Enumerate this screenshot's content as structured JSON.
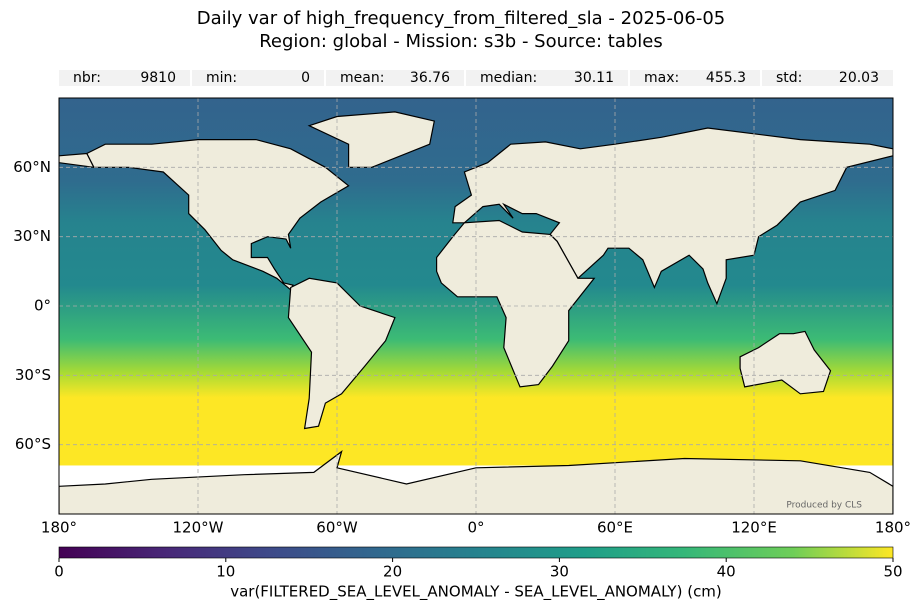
{
  "title": "Daily var of high_frequency_from_filtered_sla - 2025-06-05",
  "subtitle": "Region: global - Mission: s3b - Source: tables",
  "stats": [
    {
      "label": "nbr:",
      "value": 9810
    },
    {
      "label": "min:",
      "value": 0
    },
    {
      "label": "mean:",
      "value": 36.76
    },
    {
      "label": "median:",
      "value": 30.11
    },
    {
      "label": "max:",
      "value": 455.3
    },
    {
      "label": "std:",
      "value": 20.03
    }
  ],
  "map": {
    "xlim": [
      -180,
      180
    ],
    "ylim": [
      -90,
      90
    ],
    "xticks": [
      {
        "value": -180,
        "label": "180°"
      },
      {
        "value": -120,
        "label": "120°W"
      },
      {
        "value": -60,
        "label": "60°W"
      },
      {
        "value": 0,
        "label": "0°"
      },
      {
        "value": 60,
        "label": "60°E"
      },
      {
        "value": 120,
        "label": "120°E"
      },
      {
        "value": 180,
        "label": "180°"
      }
    ],
    "yticks": [
      {
        "value": 60,
        "label": "60°N"
      },
      {
        "value": 30,
        "label": "30°N"
      },
      {
        "value": 0,
        "label": "0°"
      },
      {
        "value": -30,
        "label": "30°S"
      },
      {
        "value": -60,
        "label": "60°S"
      }
    ],
    "credit": "Produced by CLS"
  },
  "colorbar": {
    "label": "var(FILTERED_SEA_LEVEL_ANOMALY - SEA_LEVEL_ANOMALY) (cm)",
    "clim": [
      0,
      50
    ],
    "ticks": [
      0,
      10,
      20,
      30,
      40,
      50
    ],
    "colormap": "viridis"
  }
}
